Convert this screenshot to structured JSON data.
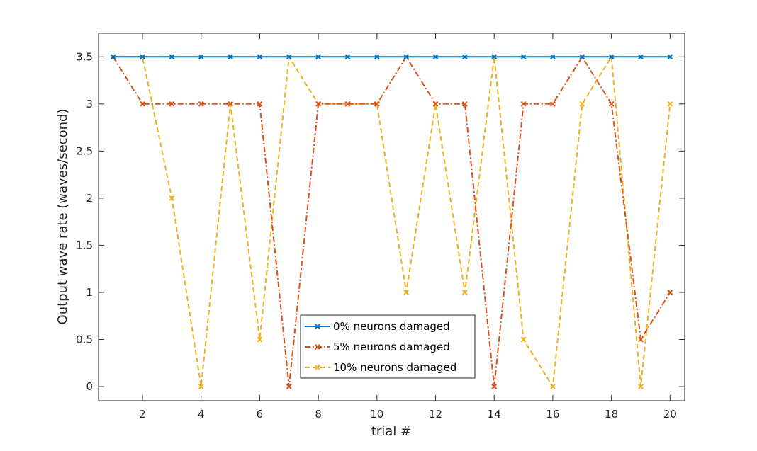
{
  "chart_data": {
    "type": "line",
    "xlabel": "trial #",
    "ylabel": "Output wave rate (waves/second)",
    "xlim": [
      0.5,
      20.5
    ],
    "ylim": [
      -0.15,
      3.75
    ],
    "x_ticks": [
      2,
      4,
      6,
      8,
      10,
      12,
      14,
      16,
      18,
      20
    ],
    "y_ticks": [
      0,
      0.5,
      1,
      1.5,
      2,
      2.5,
      3,
      3.5
    ],
    "x_tick_labels": [
      "2",
      "4",
      "6",
      "8",
      "10",
      "12",
      "14",
      "16",
      "18",
      "20"
    ],
    "y_tick_labels": [
      "0",
      "0.5",
      "1",
      "1.5",
      "2",
      "2.5",
      "3",
      "3.5"
    ],
    "grid": false,
    "legend_position": "bottom-center",
    "x": [
      1,
      2,
      3,
      4,
      5,
      6,
      7,
      8,
      9,
      10,
      11,
      12,
      13,
      14,
      15,
      16,
      17,
      18,
      19,
      20
    ],
    "series": [
      {
        "name": "0% neurons damaged",
        "color": "#0072BD",
        "line_style": "solid",
        "marker": "x",
        "values": [
          3.5,
          3.5,
          3.5,
          3.5,
          3.5,
          3.5,
          3.5,
          3.5,
          3.5,
          3.5,
          3.5,
          3.5,
          3.5,
          3.5,
          3.5,
          3.5,
          3.5,
          3.5,
          3.5,
          3.5
        ]
      },
      {
        "name": "5% neurons damaged",
        "color": "#D95319",
        "line_style": "dashdot",
        "marker": "x",
        "values": [
          3.5,
          3,
          3,
          3,
          3,
          3,
          0,
          3,
          3,
          3,
          3.5,
          3,
          3,
          0,
          3,
          3,
          3.5,
          3,
          0.5,
          1
        ]
      },
      {
        "name": "10% neurons damaged",
        "color": "#EDB120",
        "line_style": "dashed",
        "marker": "x",
        "values": [
          3.5,
          3.5,
          2,
          0,
          3,
          0.5,
          3.5,
          3,
          3,
          3,
          1,
          3,
          1,
          3.5,
          0.5,
          0,
          3,
          3.5,
          0,
          3
        ]
      }
    ]
  }
}
